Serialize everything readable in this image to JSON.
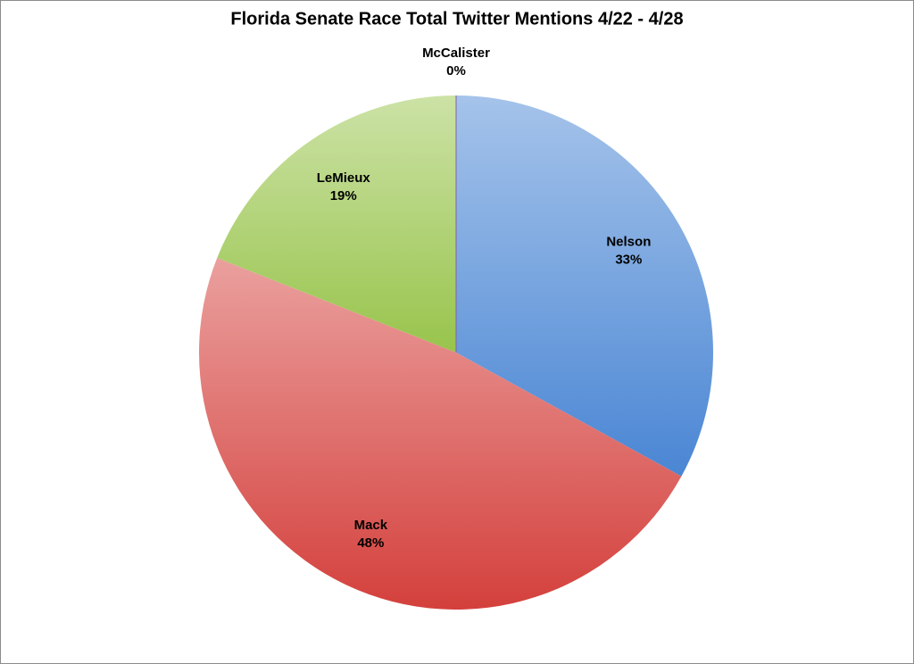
{
  "chart_data": {
    "type": "pie",
    "title": "Florida Senate Race Total Twitter Mentions 4/22 - 4/28",
    "categories": [
      "Nelson",
      "Mack",
      "LeMieux",
      "McCalister"
    ],
    "values": [
      33,
      48,
      19,
      0
    ],
    "value_labels": [
      "33%",
      "48%",
      "19%",
      "0%"
    ],
    "colors": [
      "#4a86d4",
      "#d4403c",
      "#98c44c",
      "#8064a2"
    ]
  }
}
